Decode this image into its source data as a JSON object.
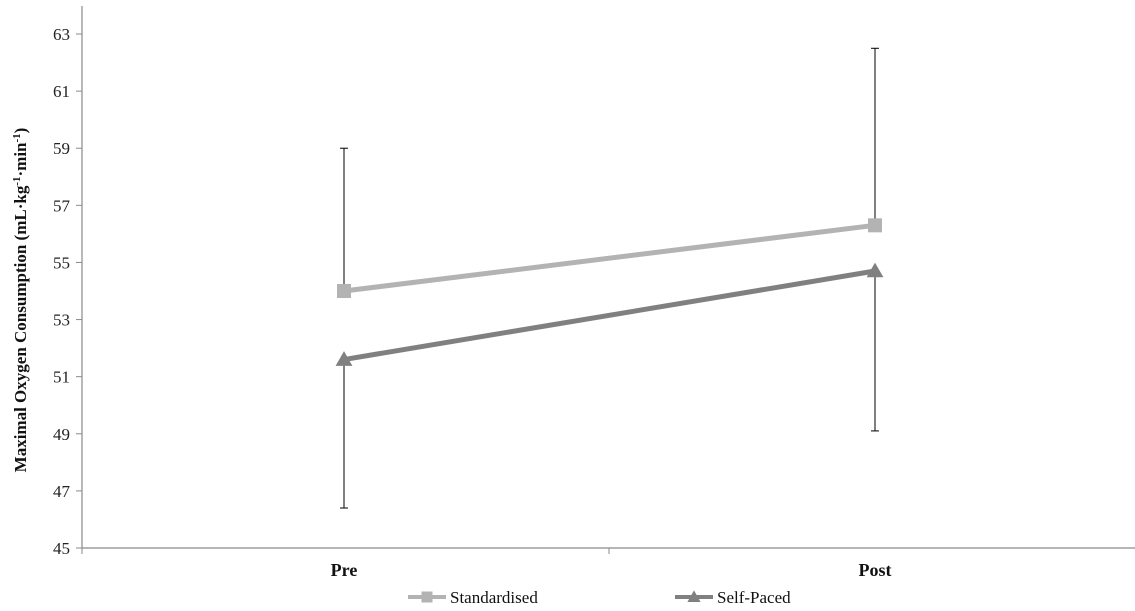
{
  "chart_data": {
    "type": "line",
    "categories": [
      "Pre",
      "Post"
    ],
    "ylabel": {
      "main": "Maximal Oxygen Consumption  (mL·kg",
      "sup1": "-1",
      "mid": "·min",
      "sup2": "-1",
      "end": ")"
    },
    "ylim": [
      45,
      63
    ],
    "yticks": [
      "45",
      "47",
      "49",
      "51",
      "53",
      "55",
      "57",
      "59",
      "61",
      "63"
    ],
    "grid": false,
    "legend_position": "bottom",
    "series": [
      {
        "name": "Standardised",
        "marker": "square",
        "color": "#b3b3b3",
        "values": [
          54.0,
          56.3
        ],
        "error_upper": [
          59.0,
          62.5
        ],
        "error_lower": [
          null,
          null
        ]
      },
      {
        "name": "Self-Paced",
        "marker": "triangle",
        "color": "#808080",
        "values": [
          51.6,
          54.7
        ],
        "error_upper": [
          null,
          null
        ],
        "error_lower": [
          46.4,
          49.1
        ]
      }
    ]
  }
}
